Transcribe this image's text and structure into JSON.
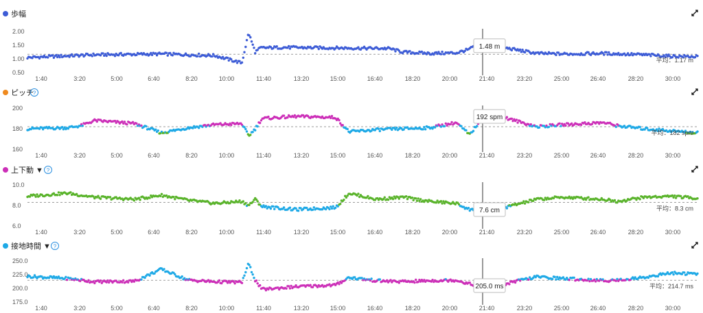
{
  "colors": {
    "blue": "#3d5cd6",
    "cyan": "#1ea9e6",
    "green": "#59b32a",
    "magenta": "#cc2fb8",
    "orange": "#ef8a1f",
    "ref_line": "#9a9a9a",
    "axis_text": "#555555",
    "crosshair": "#333333",
    "help": "#2a8fe0"
  },
  "x_ticks": [
    "1:40",
    "3:20",
    "5:00",
    "6:40",
    "8:20",
    "10:00",
    "11:40",
    "13:20",
    "15:00",
    "16:40",
    "18:20",
    "20:00",
    "21:40",
    "23:20",
    "25:00",
    "26:40",
    "28:20",
    "30:00"
  ],
  "crosshair_time": "21:40",
  "chart_data": [
    {
      "type": "scatter",
      "title": "歩幅",
      "legend_color": "blue",
      "has_help": false,
      "has_dropdown": false,
      "y_ticks": [
        "2.00",
        "1.50",
        "1.00",
        "0.50"
      ],
      "ylim": [
        0.5,
        2.0
      ],
      "reference": {
        "label": "平均：1.17 m",
        "value": 1.17
      },
      "tooltip": {
        "text": "1.48 m",
        "value": 1.48
      },
      "color_rule": "single",
      "series": [
        {
          "name": "歩幅",
          "x": [
            0,
            100,
            200,
            280,
            320,
            330,
            340,
            348,
            380,
            460,
            540,
            560,
            600,
            640,
            660,
            670,
            680,
            700,
            760,
            800,
            860,
            920,
            960,
            1000
          ],
          "y": [
            1.05,
            1.15,
            1.18,
            1.12,
            0.85,
            1.95,
            1.25,
            1.4,
            1.42,
            1.4,
            1.38,
            1.25,
            1.2,
            1.22,
            1.35,
            1.55,
            1.48,
            1.46,
            1.2,
            1.18,
            1.2,
            1.15,
            1.1,
            1.08
          ]
        }
      ]
    },
    {
      "type": "scatter",
      "title": "ピッチ",
      "legend_color": "orange",
      "has_help": true,
      "has_dropdown": false,
      "y_ticks": [
        "200",
        "180",
        "160"
      ],
      "ylim": [
        160,
        200
      ],
      "reference": {
        "label": "平均：182 spm",
        "value": 182
      },
      "tooltip": {
        "text": "192 spm",
        "value": 192
      },
      "color_rule": "pitch",
      "series": [
        {
          "name": "ピッチ",
          "x": [
            0,
            60,
            80,
            100,
            160,
            200,
            240,
            280,
            320,
            330,
            340,
            350,
            400,
            460,
            480,
            520,
            560,
            600,
            640,
            660,
            680,
            700,
            760,
            800,
            860,
            880,
            920,
            960,
            1000
          ],
          "y": [
            180,
            181,
            183,
            188,
            185,
            176,
            181,
            184,
            185,
            173,
            180,
            190,
            192,
            191,
            177,
            179,
            180,
            181,
            186,
            174,
            192,
            193,
            182,
            184,
            186,
            183,
            180,
            178,
            176
          ]
        }
      ]
    },
    {
      "type": "scatter",
      "title": "上下動 ▼",
      "legend_color": "magenta",
      "has_help": true,
      "has_dropdown": true,
      "y_ticks": [
        "10.0",
        "8.0",
        "6.0"
      ],
      "ylim": [
        6.0,
        10.0
      ],
      "reference": {
        "label": "平均：8.3 cm",
        "value": 8.3
      },
      "tooltip": {
        "text": "7.6 cm",
        "value": 7.6
      },
      "color_rule": "vertical",
      "series": [
        {
          "name": "上下動",
          "x": [
            0,
            60,
            80,
            100,
            160,
            200,
            240,
            280,
            320,
            330,
            340,
            350,
            400,
            460,
            480,
            520,
            560,
            600,
            640,
            660,
            680,
            700,
            760,
            800,
            860,
            880,
            920,
            960,
            1000
          ],
          "y": [
            8.9,
            9.2,
            9.0,
            8.8,
            8.6,
            9.0,
            8.5,
            8.2,
            8.4,
            8.0,
            8.6,
            7.9,
            7.6,
            7.8,
            9.2,
            8.6,
            8.8,
            8.4,
            8.2,
            7.6,
            7.5,
            7.6,
            8.6,
            8.8,
            8.6,
            8.4,
            8.8,
            8.9,
            8.7
          ]
        }
      ]
    },
    {
      "type": "scatter",
      "title": "接地時間 ▼",
      "legend_color": "cyan",
      "has_help": true,
      "has_dropdown": true,
      "y_ticks": [
        "250.0",
        "225.0",
        "200.0",
        "175.0"
      ],
      "ylim": [
        175,
        250
      ],
      "reference": {
        "label": "平均：214.7 ms",
        "value": 214.7
      },
      "tooltip": {
        "text": "205.0 ms",
        "value": 205
      },
      "color_rule": "contact",
      "series": [
        {
          "name": "接地時間",
          "x": [
            0,
            60,
            80,
            100,
            160,
            200,
            240,
            280,
            320,
            330,
            340,
            350,
            400,
            460,
            480,
            520,
            560,
            600,
            640,
            660,
            680,
            700,
            760,
            800,
            860,
            880,
            920,
            960,
            1000
          ],
          "y": [
            222,
            218,
            215,
            212,
            213,
            235,
            215,
            212,
            211,
            245,
            215,
            198,
            203,
            206,
            220,
            214,
            212,
            214,
            215,
            208,
            204,
            205,
            221,
            218,
            214,
            215,
            220,
            228,
            226
          ]
        }
      ]
    }
  ]
}
